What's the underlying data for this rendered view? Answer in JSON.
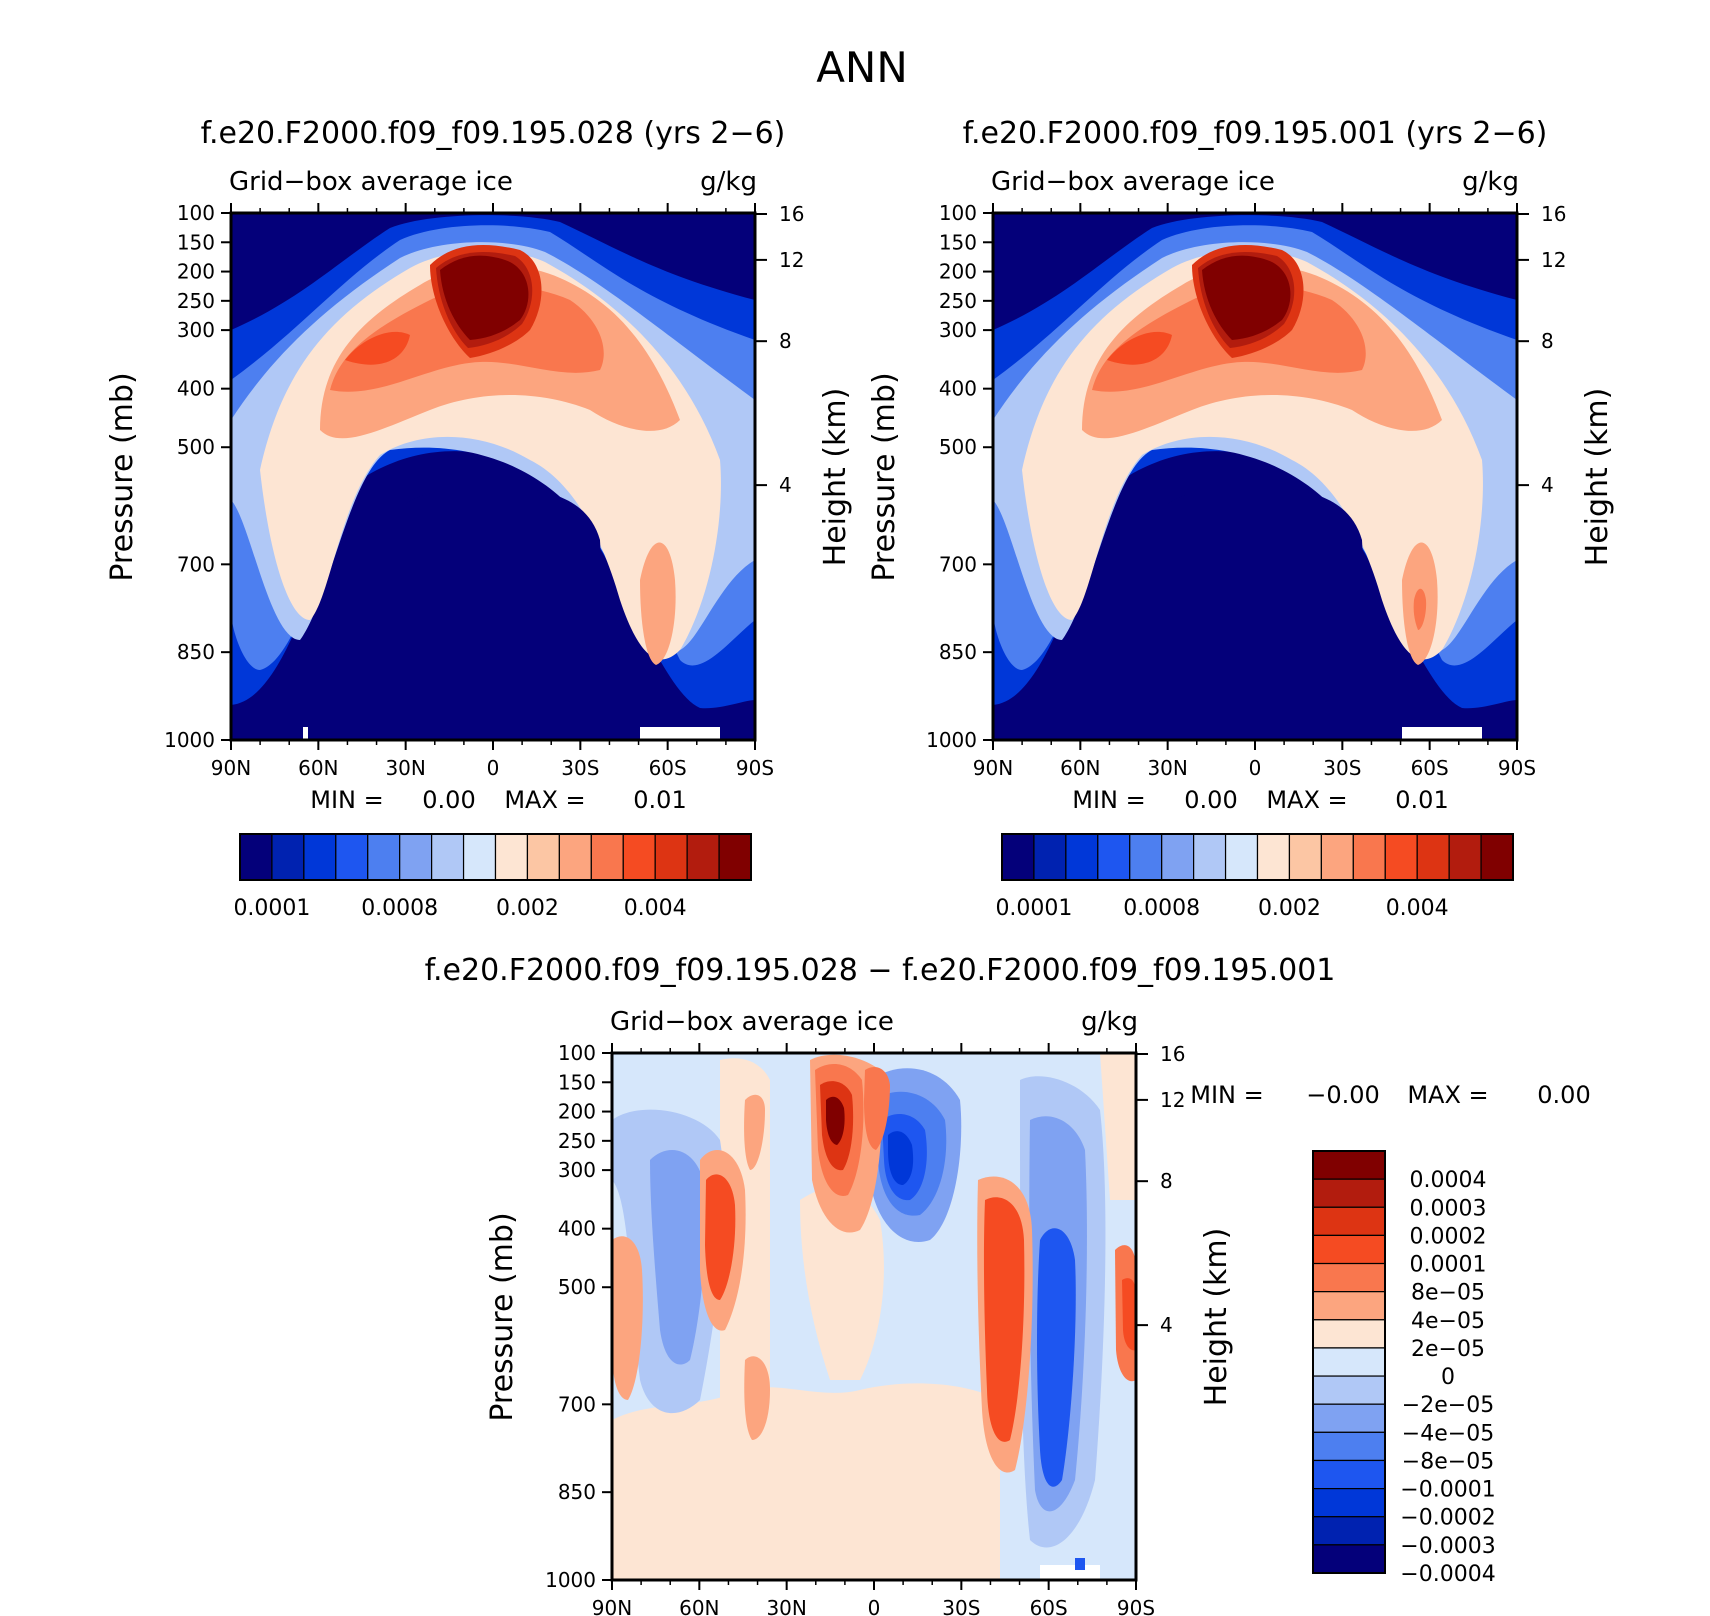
{
  "main_title": "ANN",
  "chart_data": [
    {
      "type": "heatmap",
      "subtype": "filled-contour latitude-pressure cross-section",
      "title": "f.e20.F2000.f09_f09.195.028 (yrs 2−6)",
      "left_string": "Grid−box average ice",
      "right_string": "g/kg",
      "xlabel": "",
      "ylabel": "Pressure (mb)",
      "y2label": "Height (km)",
      "x_ticks": [
        "90N",
        "60N",
        "30N",
        "0",
        "30S",
        "60S",
        "90S"
      ],
      "y_ticks": [
        "100",
        "150",
        "200",
        "250",
        "300",
        "400",
        "500",
        "700",
        "850",
        "1000"
      ],
      "y2_ticks": [
        "16",
        "12",
        "8",
        "4"
      ],
      "xlim": [
        90,
        -90
      ],
      "ylim": [
        100,
        1000
      ],
      "min_max_label": {
        "min_text": "MIN =",
        "min_value": "0.00",
        "max_text": "MAX =",
        "max_value": "0.01"
      },
      "colorbar": {
        "orientation": "horizontal",
        "colors": [
          "#04007a",
          "#0022b0",
          "#0037d8",
          "#1e56f0",
          "#4d7ff0",
          "#7fa2f2",
          "#b0c8f6",
          "#d6e7fb",
          "#fde5d3",
          "#fcc6a4",
          "#fca57f",
          "#f9774e",
          "#f54b22",
          "#dd3413",
          "#b21c0e",
          "#800000"
        ],
        "labels": [
          "0.0001",
          "0.0008",
          "0.002",
          "0.004"
        ]
      },
      "features": {
        "max_core": {
          "lat": 0,
          "pressure_mb": 250,
          "approx_value": 0.006
        },
        "secondary_max_nh": {
          "lat": 35,
          "pressure_mb": 350,
          "approx_value": 0.004
        },
        "lowlevel_max_sh": {
          "lat": -60,
          "pressure_mb": 750,
          "approx_value": 0.002
        }
      }
    },
    {
      "type": "heatmap",
      "subtype": "filled-contour latitude-pressure cross-section",
      "title": "f.e20.F2000.f09_f09.195.001 (yrs 2−6)",
      "left_string": "Grid−box average ice",
      "right_string": "g/kg",
      "xlabel": "",
      "ylabel": "Pressure (mb)",
      "y2label": "Height (km)",
      "x_ticks": [
        "90N",
        "60N",
        "30N",
        "0",
        "30S",
        "60S",
        "90S"
      ],
      "y_ticks": [
        "100",
        "150",
        "200",
        "250",
        "300",
        "400",
        "500",
        "700",
        "850",
        "1000"
      ],
      "y2_ticks": [
        "16",
        "12",
        "8",
        "4"
      ],
      "xlim": [
        90,
        -90
      ],
      "ylim": [
        100,
        1000
      ],
      "min_max_label": {
        "min_text": "MIN =",
        "min_value": "0.00",
        "max_text": "MAX =",
        "max_value": "0.01"
      },
      "colorbar": {
        "orientation": "horizontal",
        "colors": [
          "#04007a",
          "#0022b0",
          "#0037d8",
          "#1e56f0",
          "#4d7ff0",
          "#7fa2f2",
          "#b0c8f6",
          "#d6e7fb",
          "#fde5d3",
          "#fcc6a4",
          "#fca57f",
          "#f9774e",
          "#f54b22",
          "#dd3413",
          "#b21c0e",
          "#800000"
        ],
        "labels": [
          "0.0001",
          "0.0008",
          "0.002",
          "0.004"
        ]
      },
      "features": {
        "max_core": {
          "lat": 0,
          "pressure_mb": 250,
          "approx_value": 0.006
        },
        "secondary_max_nh": {
          "lat": 35,
          "pressure_mb": 350,
          "approx_value": 0.004
        },
        "lowlevel_max_sh": {
          "lat": -60,
          "pressure_mb": 750,
          "approx_value": 0.002
        }
      }
    },
    {
      "type": "heatmap",
      "subtype": "filled-contour difference cross-section",
      "title": "f.e20.F2000.f09_f09.195.028 − f.e20.F2000.f09_f09.195.001",
      "left_string": "Grid−box average ice",
      "right_string": "g/kg",
      "xlabel": "",
      "ylabel": "Pressure (mb)",
      "y2label": "Height (km)",
      "x_ticks": [
        "90N",
        "60N",
        "30N",
        "0",
        "30S",
        "60S",
        "90S"
      ],
      "y_ticks": [
        "100",
        "150",
        "200",
        "250",
        "300",
        "400",
        "500",
        "700",
        "850",
        "1000"
      ],
      "y2_ticks": [
        "16",
        "12",
        "8",
        "4"
      ],
      "xlim": [
        90,
        -90
      ],
      "ylim": [
        100,
        1000
      ],
      "min_max_label": {
        "min_text": "MIN =",
        "min_value": "−0.00",
        "max_text": "MAX =",
        "max_value": "0.00"
      },
      "colorbar": {
        "orientation": "vertical",
        "colors": [
          "#800000",
          "#b21c0e",
          "#dd3413",
          "#f54b22",
          "#f9774e",
          "#fca57f",
          "#fde5d3",
          "#d6e7fb",
          "#b0c8f6",
          "#7fa2f2",
          "#4d7ff0",
          "#1e56f0",
          "#0037d8",
          "#0022b0",
          "#04007a"
        ],
        "labels": [
          "0.0004",
          "0.0003",
          "0.0002",
          "0.0001",
          "8e−05",
          "4e−05",
          "2e−05",
          "0",
          "−2e−05",
          "−4e−05",
          "−8e−05",
          "−0.0001",
          "−0.0002",
          "−0.0003",
          "−0.0004"
        ]
      },
      "features": [
        {
          "lat": 18,
          "pressure_mb": 220,
          "sign": "positive",
          "approx_value": 0.0004
        },
        {
          "lat": 3,
          "pressure_mb": 220,
          "sign": "positive",
          "approx_value": 0.0002
        },
        {
          "lat": -8,
          "pressure_mb": 280,
          "sign": "negative",
          "approx_value": -0.0002
        },
        {
          "lat": 55,
          "pressure_mb": 420,
          "sign": "positive",
          "approx_value": 0.0001
        },
        {
          "lat": -50,
          "pressure_mb": 550,
          "sign": "positive",
          "approx_value": 0.0001
        },
        {
          "lat": -62,
          "pressure_mb": 700,
          "sign": "negative",
          "approx_value": -0.0001
        }
      ]
    }
  ]
}
